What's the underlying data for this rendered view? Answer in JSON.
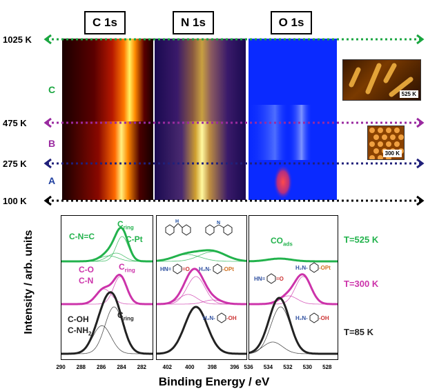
{
  "panels": [
    {
      "title": "C 1s",
      "colormap": "hot"
    },
    {
      "title": "N 1s",
      "colormap": "plasma"
    },
    {
      "title": "O 1s",
      "colormap": "blue"
    }
  ],
  "temperatures": [
    "1025 K",
    "475 K",
    "275 K",
    "100 K"
  ],
  "regions": [
    "C",
    "B",
    "A"
  ],
  "insets": [
    {
      "label": "525 K"
    },
    {
      "label": "300 K"
    }
  ],
  "y_axis_label": "Intensity / arb. units",
  "x_axis_label": "Binding Energy / eV",
  "spectra_rows": [
    "T=525 K",
    "T=300 K",
    "T=85 K"
  ],
  "colors": {
    "row_525": "#22b24c",
    "row_300": "#cc33aa",
    "row_85": "#222222",
    "arrow_green": "#1aa640",
    "arrow_purple": "#9a2aa0",
    "arrow_blue": "#20207a",
    "arrow_black": "#000000",
    "label_C": "#1aa640",
    "label_B": "#9a2aa0",
    "label_A": "#2040a0"
  },
  "c1s_labels": {
    "r525_a": "C-N=C",
    "r525_b": "C",
    "r525_b_sub": "ring",
    "r525_c": "C-Pt",
    "r300_a": "C-O",
    "r300_b": "C-N",
    "r300_c": "C",
    "r300_c_sub": "ring",
    "r85_a": "C-OH",
    "r85_b": "C-NH",
    "r85_b_sub": "2",
    "r85_c": "C",
    "r85_c_sub": "ring"
  },
  "n1s_labels": {
    "r300_a": "HN=",
    "r300_b": "=O",
    "r300_c": "H₂N-",
    "r300_d": "-OPt",
    "r85_a": "H₂N-",
    "r85_b": "-OH"
  },
  "o1s_labels": {
    "r525_a": "CO",
    "r525_a_sub": "ads",
    "r300_a": "HN=",
    "r300_b": "=O",
    "r300_c": "H₂N-",
    "r300_d": "-OPt",
    "r85_a": "H₂N-",
    "r85_b": "-OH"
  },
  "chart_data": {
    "type": "line",
    "xlabel": "Binding Energy / eV",
    "ylabel": "Intensity / arb. units",
    "subplots": [
      {
        "name": "C 1s",
        "xlim": [
          290,
          281
        ],
        "ticks": [
          "290",
          "288",
          "286",
          "284",
          "282"
        ],
        "peaks": {
          "T=525 K": [
            {
              "center": 284.0,
              "height": 0.9,
              "width": 0.6
            },
            {
              "center": 284.6,
              "height": 0.3,
              "width": 0.8
            },
            {
              "center": 285.3,
              "height": 0.2,
              "width": 0.9
            }
          ],
          "T=300 K": [
            {
              "center": 284.2,
              "height": 1.0,
              "width": 0.65
            },
            {
              "center": 285.8,
              "height": 0.55,
              "width": 0.75
            }
          ],
          "T=85 K": [
            {
              "center": 284.8,
              "height": 1.0,
              "width": 0.9
            },
            {
              "center": 286.0,
              "height": 0.6,
              "width": 0.9
            }
          ]
        }
      },
      {
        "name": "N 1s",
        "xlim": [
          403,
          395
        ],
        "ticks": [
          "402",
          "400",
          "398",
          "396"
        ],
        "peaks": {
          "T=525 K": [
            {
              "center": 400.3,
              "height": 0.25,
              "width": 1.2
            },
            {
              "center": 398.0,
              "height": 0.35,
              "width": 1.2
            }
          ],
          "T=300 K": [
            {
              "center": 399.5,
              "height": 1.0,
              "width": 0.8
            },
            {
              "center": 400.2,
              "height": 0.35,
              "width": 0.8
            },
            {
              "center": 398.0,
              "height": 0.15,
              "width": 0.8
            }
          ],
          "T=85 K": [
            {
              "center": 399.5,
              "height": 1.0,
              "width": 1.0
            }
          ]
        }
      },
      {
        "name": "O 1s",
        "xlim": [
          536,
          527
        ],
        "ticks": [
          "536",
          "534",
          "532",
          "530",
          "528"
        ],
        "peaks": {
          "T=525 K": [
            {
              "center": 532.9,
              "height": 0.1,
              "width": 1.2
            }
          ],
          "T=300 K": [
            {
              "center": 530.5,
              "height": 1.0,
              "width": 0.8
            },
            {
              "center": 532.0,
              "height": 0.3,
              "width": 0.9
            }
          ],
          "T=85 K": [
            {
              "center": 532.8,
              "height": 1.0,
              "width": 1.0
            },
            {
              "center": 533.6,
              "height": 0.25,
              "width": 1.0
            }
          ]
        }
      }
    ]
  }
}
